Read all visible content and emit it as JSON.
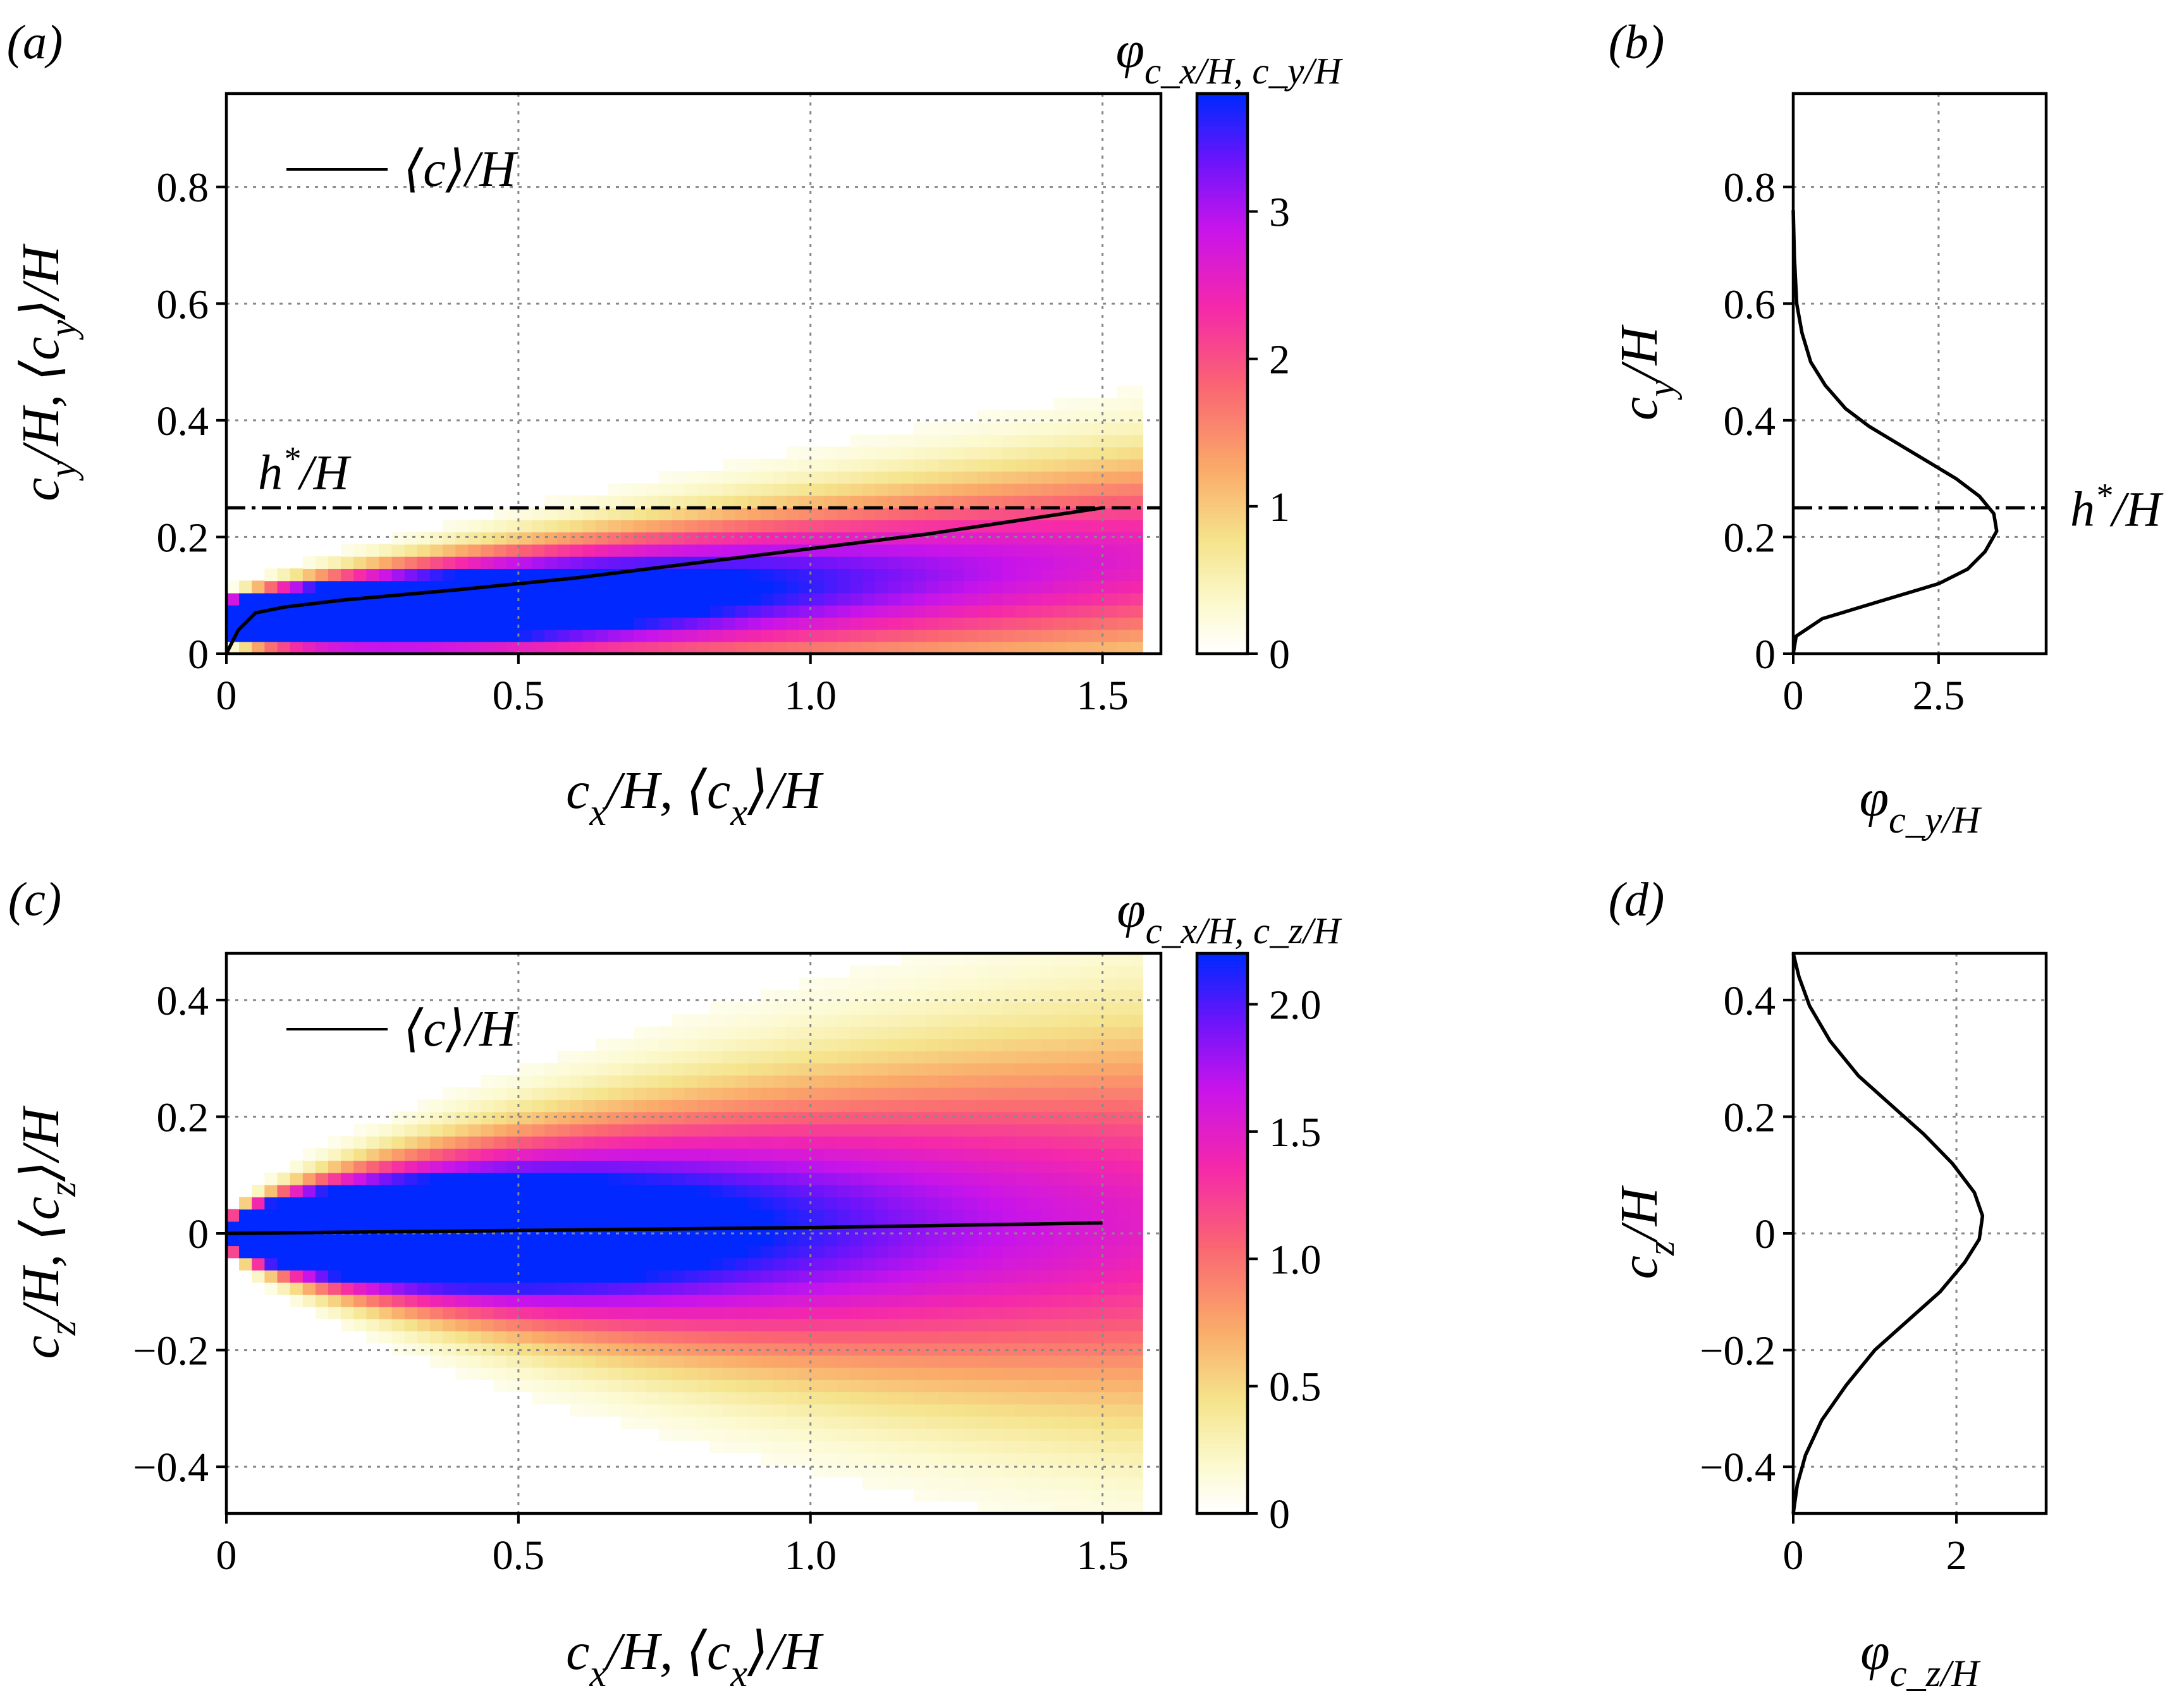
{
  "chart_data": [
    {
      "panel": "(a)",
      "type": "heatmap",
      "xlabel": "c_x/H, ⟨c_x⟩/H",
      "ylabel": "c_y/H, ⟨c_y⟩/H",
      "colorbar_label": "φ_{c_x/H, c_y/H}",
      "xlim": [
        0,
        1.6
      ],
      "ylim": [
        0,
        0.96
      ],
      "xticks": [
        "0",
        "0.5",
        "1.0",
        "1.5"
      ],
      "yticks": [
        "0",
        "0.2",
        "0.4",
        "0.6",
        "0.8"
      ],
      "colorbar_ticks": [
        "0",
        "1",
        "2",
        "3"
      ],
      "colorbar_range": [
        0,
        3.8
      ],
      "legend": "⟨c⟩/H",
      "legend_position": "upper-left",
      "grid": true,
      "reference_line": {
        "y": 0.25,
        "label": "h*/H",
        "style": "dash-dot"
      },
      "mean_curve": {
        "x": [
          0,
          0.02,
          0.05,
          0.1,
          0.2,
          0.4,
          0.6,
          0.8,
          1.0,
          1.2,
          1.4,
          1.5
        ],
        "y": [
          0.0,
          0.04,
          0.07,
          0.08,
          0.092,
          0.11,
          0.13,
          0.155,
          0.18,
          0.205,
          0.235,
          0.25
        ]
      },
      "density_model": {
        "x_max": 1.57,
        "center_y": [
          0.06,
          0.165
        ],
        "half_width_y": [
          0.03,
          0.24
        ],
        "peak": 3.8
      }
    },
    {
      "panel": "(b)",
      "type": "line",
      "xlabel": "φ_{c_y/H}",
      "ylabel": "c_y/H",
      "xlim": [
        0,
        4.35
      ],
      "ylim": [
        0,
        0.96
      ],
      "xticks": [
        "0",
        "2.5"
      ],
      "yticks": [
        "0",
        "0.2",
        "0.4",
        "0.6",
        "0.8"
      ],
      "grid": true,
      "reference_line": {
        "y": 0.25,
        "label": "h*/H",
        "style": "dash-dot"
      },
      "series": [
        {
          "x": [
            0.0,
            0.05,
            0.5,
            1.0,
            1.5,
            2.0,
            2.5,
            3.0,
            3.3,
            3.5,
            3.45,
            3.2,
            2.8,
            2.3,
            1.8,
            1.3,
            0.9,
            0.55,
            0.3,
            0.15,
            0.06,
            0.02,
            0.0
          ],
          "y": [
            0.0,
            0.03,
            0.06,
            0.075,
            0.09,
            0.105,
            0.12,
            0.145,
            0.175,
            0.21,
            0.24,
            0.27,
            0.3,
            0.33,
            0.36,
            0.39,
            0.42,
            0.46,
            0.5,
            0.55,
            0.6,
            0.68,
            0.76
          ]
        }
      ]
    },
    {
      "panel": "(c)",
      "type": "heatmap",
      "xlabel": "c_x/H, ⟨c_x⟩/H",
      "ylabel": "c_z/H, ⟨c_z⟩/H",
      "colorbar_label": "φ_{c_x/H, c_z/H}",
      "xlim": [
        0,
        1.6
      ],
      "ylim": [
        -0.48,
        0.48
      ],
      "xticks": [
        "0",
        "0.5",
        "1.0",
        "1.5"
      ],
      "yticks": [
        "−0.4",
        "−0.2",
        "0",
        "0.2",
        "0.4"
      ],
      "colorbar_ticks": [
        "0",
        "0.5",
        "1.0",
        "1.5",
        "2.0"
      ],
      "colorbar_range": [
        0,
        2.2
      ],
      "legend": "⟨c⟩/H",
      "legend_position": "upper-left",
      "grid": true,
      "mean_curve": {
        "x": [
          0,
          0.5,
          1.0,
          1.5
        ],
        "y": [
          0.0,
          0.005,
          0.01,
          0.018
        ]
      },
      "density_model": {
        "x_max": 1.57,
        "center_y": [
          0.0,
          0.02
        ],
        "half_width_y": [
          0.02,
          0.45
        ],
        "peak": 2.2
      }
    },
    {
      "panel": "(d)",
      "type": "line",
      "xlabel": "φ_{c_z/H}",
      "ylabel": "c_z/H",
      "xlim": [
        0,
        3.1
      ],
      "ylim": [
        -0.48,
        0.48
      ],
      "xticks": [
        "0",
        "2"
      ],
      "yticks": [
        "−0.4",
        "−0.2",
        "0",
        "0.2",
        "0.4"
      ],
      "grid": true,
      "series": [
        {
          "x": [
            0.0,
            0.05,
            0.15,
            0.35,
            0.65,
            1.0,
            1.4,
            1.8,
            2.1,
            2.28,
            2.32,
            2.22,
            1.95,
            1.6,
            1.2,
            0.8,
            0.45,
            0.2,
            0.07,
            0.0
          ],
          "y": [
            -0.48,
            -0.43,
            -0.38,
            -0.32,
            -0.26,
            -0.2,
            -0.15,
            -0.1,
            -0.05,
            -0.01,
            0.03,
            0.07,
            0.12,
            0.17,
            0.22,
            0.27,
            0.33,
            0.39,
            0.44,
            0.48
          ]
        }
      ]
    }
  ]
}
